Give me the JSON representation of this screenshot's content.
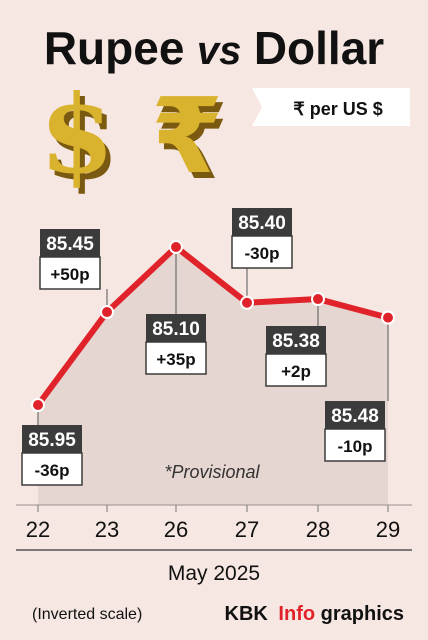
{
  "title": {
    "part1": "Rupee",
    "part2": "vs",
    "part3": "Dollar"
  },
  "unit_label": "₹ per US $",
  "provisional_note": "*Provisional",
  "month_label": "May 2025",
  "scale_note": "(Inverted scale)",
  "credit": {
    "brand": "KBK",
    "info": "Info",
    "graphics": "graphics"
  },
  "colors": {
    "line": "#e0232a",
    "area": "#e6d6d1",
    "label_dark": "#3b3b3b",
    "background": "#f7e7e2",
    "brand_red": "#e0232a"
  },
  "icons": [
    "dollar-symbol-icon",
    "rupee-symbol-icon"
  ],
  "chart_data": {
    "type": "line",
    "x": [
      "22",
      "23",
      "26",
      "27",
      "28",
      "29"
    ],
    "y": [
      85.95,
      85.45,
      85.1,
      85.4,
      85.38,
      85.48
    ],
    "changes": [
      "-36p",
      "+50p",
      "+35p",
      "-30p",
      "+2p",
      "-10p"
    ],
    "value_labels": [
      "85.95",
      "85.45",
      "85.10",
      "85.40",
      "85.38",
      "85.48"
    ],
    "xlabel": "May 2025",
    "y_inverted": true,
    "grid": false
  }
}
